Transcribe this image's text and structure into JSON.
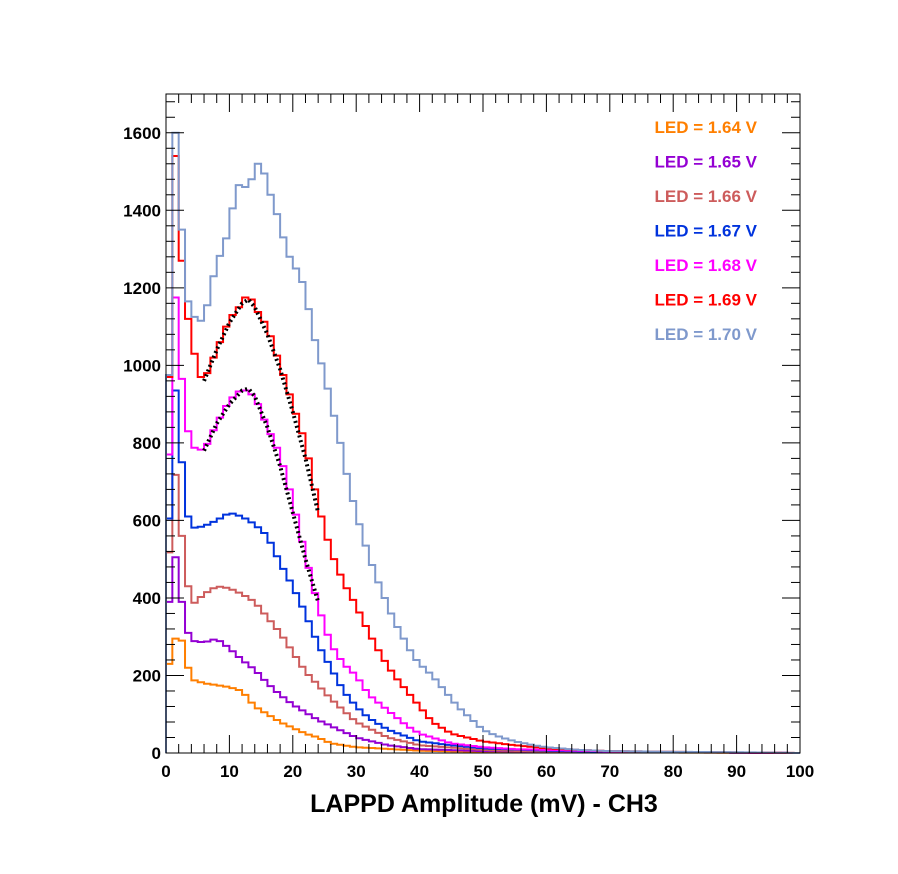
{
  "chart_data": {
    "type": "line",
    "style": "step-histogram",
    "title": "",
    "xlabel": "LAPPD Amplitude (mV) - CH3",
    "ylabel": "",
    "xlim": [
      0,
      100
    ],
    "ylim": [
      0,
      1700
    ],
    "x_ticks": [
      0,
      10,
      20,
      30,
      40,
      50,
      60,
      70,
      80,
      90,
      100
    ],
    "y_ticks": [
      0,
      200,
      400,
      600,
      800,
      1000,
      1200,
      1400,
      1600
    ],
    "x_tick_labels": [
      "0",
      "10",
      "20",
      "30",
      "40",
      "50",
      "60",
      "70",
      "80",
      "90",
      "100"
    ],
    "y_tick_labels": [
      "0",
      "200",
      "400",
      "600",
      "800",
      "1000",
      "1200",
      "1400",
      "1600"
    ],
    "legend_position": "top-right",
    "bin_width_mV": 1,
    "series": [
      {
        "name": "LED = 1.64 V",
        "label": "LED = 1.64 V",
        "color": "#ff7f00",
        "points": [
          [
            0,
            200
          ],
          [
            1,
            260
          ],
          [
            2,
            330
          ],
          [
            3,
            250
          ],
          [
            4,
            190
          ],
          [
            6,
            180
          ],
          [
            8,
            175
          ],
          [
            10,
            170
          ],
          [
            12,
            160
          ],
          [
            14,
            120
          ],
          [
            16,
            100
          ],
          [
            18,
            80
          ],
          [
            20,
            65
          ],
          [
            22,
            50
          ],
          [
            24,
            40
          ],
          [
            26,
            25
          ],
          [
            30,
            15
          ],
          [
            40,
            6
          ],
          [
            50,
            3
          ],
          [
            100,
            0
          ]
        ]
      },
      {
        "name": "LED = 1.65 V",
        "label": "LED = 1.65 V",
        "color": "#9400d3",
        "points": [
          [
            0,
            220
          ],
          [
            1,
            560
          ],
          [
            2,
            450
          ],
          [
            3,
            330
          ],
          [
            4,
            290
          ],
          [
            6,
            285
          ],
          [
            8,
            295
          ],
          [
            10,
            270
          ],
          [
            12,
            240
          ],
          [
            14,
            215
          ],
          [
            16,
            180
          ],
          [
            18,
            150
          ],
          [
            20,
            125
          ],
          [
            22,
            105
          ],
          [
            24,
            85
          ],
          [
            26,
            70
          ],
          [
            28,
            55
          ],
          [
            30,
            40
          ],
          [
            35,
            20
          ],
          [
            40,
            10
          ],
          [
            50,
            5
          ],
          [
            100,
            0
          ]
        ]
      },
      {
        "name": "LED = 1.66 V",
        "label": "LED = 1.66 V",
        "color": "#cd5c5c",
        "points": [
          [
            0,
            240
          ],
          [
            1,
            795
          ],
          [
            2,
            640
          ],
          [
            3,
            480
          ],
          [
            4,
            380
          ],
          [
            6,
            410
          ],
          [
            8,
            430
          ],
          [
            10,
            425
          ],
          [
            12,
            410
          ],
          [
            14,
            390
          ],
          [
            16,
            350
          ],
          [
            18,
            310
          ],
          [
            20,
            260
          ],
          [
            22,
            210
          ],
          [
            24,
            175
          ],
          [
            26,
            140
          ],
          [
            28,
            110
          ],
          [
            30,
            80
          ],
          [
            35,
            40
          ],
          [
            40,
            20
          ],
          [
            50,
            8
          ],
          [
            60,
            3
          ],
          [
            100,
            0
          ]
        ]
      },
      {
        "name": "LED = 1.67 V",
        "label": "LED = 1.67 V",
        "color": "#0033dd",
        "points": [
          [
            0,
            200
          ],
          [
            1,
            1010
          ],
          [
            2,
            860
          ],
          [
            3,
            640
          ],
          [
            4,
            580
          ],
          [
            6,
            585
          ],
          [
            8,
            600
          ],
          [
            10,
            620
          ],
          [
            12,
            610
          ],
          [
            14,
            590
          ],
          [
            16,
            560
          ],
          [
            18,
            490
          ],
          [
            20,
            430
          ],
          [
            22,
            360
          ],
          [
            24,
            280
          ],
          [
            26,
            220
          ],
          [
            28,
            160
          ],
          [
            30,
            120
          ],
          [
            32,
            90
          ],
          [
            35,
            60
          ],
          [
            40,
            30
          ],
          [
            45,
            20
          ],
          [
            50,
            12
          ],
          [
            60,
            6
          ],
          [
            70,
            3
          ],
          [
            80,
            2
          ],
          [
            100,
            0
          ]
        ]
      },
      {
        "name": "LED = 1.68 V",
        "label": "LED = 1.68 V",
        "color": "#ff00ff",
        "points": [
          [
            0,
            250
          ],
          [
            1,
            1290
          ],
          [
            2,
            1060
          ],
          [
            3,
            870
          ],
          [
            4,
            790
          ],
          [
            6,
            780
          ],
          [
            8,
            850
          ],
          [
            10,
            910
          ],
          [
            12,
            940
          ],
          [
            14,
            920
          ],
          [
            16,
            840
          ],
          [
            18,
            770
          ],
          [
            20,
            650
          ],
          [
            22,
            510
          ],
          [
            24,
            380
          ],
          [
            26,
            280
          ],
          [
            28,
            230
          ],
          [
            30,
            200
          ],
          [
            32,
            150
          ],
          [
            35,
            110
          ],
          [
            38,
            70
          ],
          [
            40,
            50
          ],
          [
            45,
            25
          ],
          [
            50,
            15
          ],
          [
            55,
            10
          ],
          [
            60,
            8
          ],
          [
            70,
            4
          ],
          [
            80,
            2
          ],
          [
            100,
            0
          ]
        ]
      },
      {
        "name": "LED = 1.69 V",
        "label": "LED = 1.69 V",
        "color": "#ff0000",
        "points": [
          [
            0,
            240
          ],
          [
            1,
            1700
          ],
          [
            2,
            1380
          ],
          [
            3,
            1160
          ],
          [
            4,
            1080
          ],
          [
            5,
            980
          ],
          [
            6,
            960
          ],
          [
            8,
            1040
          ],
          [
            10,
            1120
          ],
          [
            12,
            1160
          ],
          [
            13,
            1190
          ],
          [
            14,
            1150
          ],
          [
            16,
            1100
          ],
          [
            18,
            1000
          ],
          [
            20,
            900
          ],
          [
            22,
            800
          ],
          [
            24,
            640
          ],
          [
            26,
            520
          ],
          [
            28,
            440
          ],
          [
            30,
            380
          ],
          [
            32,
            310
          ],
          [
            34,
            250
          ],
          [
            36,
            200
          ],
          [
            38,
            160
          ],
          [
            40,
            120
          ],
          [
            42,
            80
          ],
          [
            45,
            50
          ],
          [
            50,
            30
          ],
          [
            55,
            20
          ],
          [
            60,
            12
          ],
          [
            65,
            8
          ],
          [
            70,
            5
          ],
          [
            80,
            3
          ],
          [
            100,
            0
          ]
        ]
      },
      {
        "name": "LED = 1.70 V",
        "label": "LED = 1.70 V",
        "color": "#7f99cc",
        "points": [
          [
            0,
            250
          ],
          [
            1,
            1700
          ],
          [
            2,
            1500
          ],
          [
            3,
            1200
          ],
          [
            4,
            1130
          ],
          [
            5,
            1120
          ],
          [
            6,
            1110
          ],
          [
            7,
            1200
          ],
          [
            8,
            1260
          ],
          [
            10,
            1350
          ],
          [
            11,
            1460
          ],
          [
            12,
            1470
          ],
          [
            13,
            1450
          ],
          [
            14,
            1510
          ],
          [
            15,
            1530
          ],
          [
            16,
            1460
          ],
          [
            17,
            1420
          ],
          [
            18,
            1360
          ],
          [
            19,
            1300
          ],
          [
            20,
            1260
          ],
          [
            21,
            1240
          ],
          [
            22,
            1190
          ],
          [
            23,
            1100
          ],
          [
            24,
            1030
          ],
          [
            25,
            980
          ],
          [
            26,
            900
          ],
          [
            27,
            840
          ],
          [
            28,
            760
          ],
          [
            29,
            680
          ],
          [
            30,
            620
          ],
          [
            31,
            560
          ],
          [
            32,
            510
          ],
          [
            33,
            460
          ],
          [
            34,
            420
          ],
          [
            35,
            380
          ],
          [
            36,
            340
          ],
          [
            37,
            310
          ],
          [
            38,
            280
          ],
          [
            39,
            250
          ],
          [
            40,
            230
          ],
          [
            42,
            200
          ],
          [
            44,
            160
          ],
          [
            46,
            120
          ],
          [
            48,
            90
          ],
          [
            50,
            60
          ],
          [
            52,
            45
          ],
          [
            55,
            30
          ],
          [
            58,
            20
          ],
          [
            60,
            15
          ],
          [
            65,
            8
          ],
          [
            70,
            5
          ],
          [
            80,
            3
          ],
          [
            90,
            2
          ],
          [
            100,
            0
          ]
        ]
      }
    ],
    "fits": [
      {
        "name": "gaussian fit 1.69 V",
        "points": [
          [
            6,
            960
          ],
          [
            8,
            1040
          ],
          [
            10,
            1110
          ],
          [
            12,
            1160
          ],
          [
            13,
            1170
          ],
          [
            14,
            1150
          ],
          [
            16,
            1080
          ],
          [
            18,
            990
          ],
          [
            20,
            880
          ],
          [
            22,
            760
          ],
          [
            24,
            620
          ]
        ]
      },
      {
        "name": "gaussian fit 1.68 V",
        "points": [
          [
            6,
            780
          ],
          [
            8,
            850
          ],
          [
            10,
            900
          ],
          [
            12,
            935
          ],
          [
            13,
            940
          ],
          [
            14,
            920
          ],
          [
            16,
            840
          ],
          [
            18,
            740
          ],
          [
            20,
            620
          ],
          [
            22,
            500
          ],
          [
            24,
            390
          ]
        ]
      }
    ]
  }
}
